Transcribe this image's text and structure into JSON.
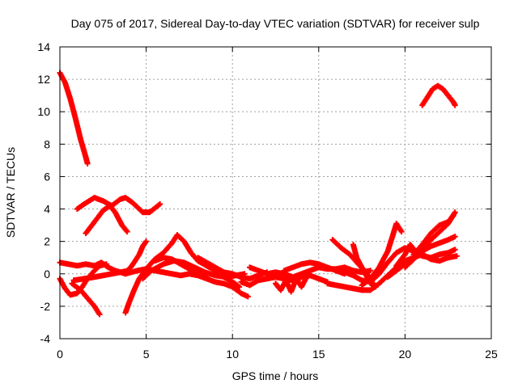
{
  "chart_data": {
    "type": "scatter",
    "title": "Day 075 of 2017, Sidereal Day-to-day VTEC variation (SDTVAR) for receiver sulp",
    "xlabel": "GPS time / hours",
    "ylabel": "SDTVAR / TECUs",
    "xlim": [
      0,
      25
    ],
    "ylim": [
      -4,
      14
    ],
    "xticks": [
      0,
      5,
      10,
      15,
      20,
      25
    ],
    "yticks": [
      -4,
      -2,
      0,
      2,
      4,
      6,
      8,
      10,
      12,
      14
    ],
    "grid": true,
    "marker": "+",
    "color": "#ff0000",
    "series": [
      {
        "name": "s1",
        "points": [
          [
            0.0,
            12.4
          ],
          [
            0.3,
            11.8
          ],
          [
            0.6,
            10.8
          ],
          [
            0.9,
            9.6
          ],
          [
            1.2,
            8.3
          ],
          [
            1.5,
            7.2
          ],
          [
            1.6,
            6.8
          ]
        ]
      },
      {
        "name": "s2",
        "points": [
          [
            1.0,
            4.0
          ],
          [
            1.4,
            4.3
          ],
          [
            2.0,
            4.7
          ],
          [
            2.5,
            4.5
          ],
          [
            3.0,
            4.2
          ],
          [
            3.5,
            4.6
          ],
          [
            3.8,
            4.7
          ],
          [
            4.2,
            4.4
          ],
          [
            4.8,
            3.8
          ],
          [
            5.2,
            3.8
          ],
          [
            5.8,
            4.3
          ]
        ]
      },
      {
        "name": "s3",
        "points": [
          [
            1.5,
            2.5
          ],
          [
            2.0,
            3.2
          ],
          [
            2.5,
            3.9
          ],
          [
            2.9,
            4.2
          ],
          [
            3.2,
            3.8
          ],
          [
            3.6,
            3.0
          ],
          [
            3.9,
            2.6
          ]
        ]
      },
      {
        "name": "s4",
        "points": [
          [
            0.0,
            0.7
          ],
          [
            0.5,
            0.6
          ],
          [
            1.0,
            0.5
          ],
          [
            1.5,
            0.6
          ],
          [
            2.0,
            0.5
          ],
          [
            2.4,
            0.7
          ],
          [
            2.8,
            0.4
          ],
          [
            3.2,
            0.2
          ],
          [
            3.8,
            0.0
          ],
          [
            4.5,
            0.2
          ],
          [
            5.0,
            0.3
          ],
          [
            5.5,
            0.2
          ],
          [
            6.0,
            0.1
          ],
          [
            6.5,
            0.0
          ],
          [
            7.0,
            -0.1
          ],
          [
            7.5,
            0.0
          ],
          [
            8.0,
            -0.1
          ],
          [
            8.5,
            -0.3
          ],
          [
            9.0,
            -0.5
          ],
          [
            9.5,
            -0.6
          ],
          [
            10.0,
            -0.8
          ],
          [
            10.5,
            -1.2
          ],
          [
            10.9,
            -1.4
          ]
        ]
      },
      {
        "name": "s5",
        "points": [
          [
            0.0,
            -0.3
          ],
          [
            0.3,
            -0.9
          ],
          [
            0.6,
            -1.3
          ],
          [
            1.0,
            -1.2
          ],
          [
            1.3,
            -0.8
          ],
          [
            1.6,
            -0.3
          ],
          [
            2.0,
            0.2
          ],
          [
            2.3,
            0.5
          ],
          [
            2.7,
            0.6
          ]
        ]
      },
      {
        "name": "s6",
        "points": [
          [
            0.7,
            -0.6
          ],
          [
            1.2,
            -1.0
          ],
          [
            1.6,
            -1.5
          ],
          [
            2.0,
            -2.0
          ],
          [
            2.3,
            -2.5
          ]
        ]
      },
      {
        "name": "s7",
        "points": [
          [
            0.8,
            -0.4
          ],
          [
            1.4,
            -0.3
          ],
          [
            2.0,
            -0.2
          ],
          [
            2.5,
            -0.1
          ],
          [
            3.0,
            0.0
          ],
          [
            3.5,
            0.1
          ],
          [
            4.0,
            0.2
          ]
        ]
      },
      {
        "name": "s8",
        "points": [
          [
            3.8,
            -2.4
          ],
          [
            4.0,
            -1.8
          ],
          [
            4.3,
            -1.0
          ],
          [
            4.6,
            -0.3
          ],
          [
            5.0,
            0.3
          ],
          [
            5.5,
            0.9
          ],
          [
            6.0,
            1.3
          ],
          [
            6.5,
            1.9
          ],
          [
            6.8,
            2.4
          ],
          [
            7.2,
            2.0
          ],
          [
            7.6,
            1.3
          ],
          [
            8.0,
            0.8
          ],
          [
            8.5,
            0.5
          ],
          [
            9.0,
            0.2
          ],
          [
            9.5,
            -0.2
          ],
          [
            10.0,
            -0.5
          ],
          [
            10.4,
            -0.8
          ]
        ]
      },
      {
        "name": "s9",
        "points": [
          [
            3.8,
            0.1
          ],
          [
            4.1,
            0.4
          ],
          [
            4.3,
            0.7
          ],
          [
            4.6,
            1.2
          ],
          [
            4.8,
            1.7
          ],
          [
            5.0,
            2.0
          ]
        ]
      },
      {
        "name": "s10",
        "points": [
          [
            4.8,
            -0.3
          ],
          [
            5.3,
            0.2
          ],
          [
            6.0,
            0.6
          ],
          [
            6.6,
            0.8
          ],
          [
            7.2,
            0.7
          ],
          [
            7.8,
            0.4
          ],
          [
            8.4,
            0.1
          ],
          [
            9.0,
            -0.1
          ],
          [
            9.6,
            -0.2
          ],
          [
            10.2,
            -0.1
          ],
          [
            10.7,
            0.0
          ]
        ]
      },
      {
        "name": "s11",
        "points": [
          [
            5.5,
            0.8
          ],
          [
            6.0,
            1.0
          ],
          [
            6.5,
            0.9
          ],
          [
            7.0,
            0.6
          ],
          [
            7.5,
            0.3
          ],
          [
            8.0,
            0.0
          ],
          [
            8.5,
            -0.2
          ]
        ]
      },
      {
        "name": "s12",
        "points": [
          [
            8.0,
            1.0
          ],
          [
            8.5,
            0.7
          ],
          [
            9.0,
            0.4
          ],
          [
            9.5,
            0.1
          ],
          [
            10.0,
            0.0
          ],
          [
            10.5,
            -0.2
          ],
          [
            11.0,
            -0.3
          ],
          [
            11.5,
            -0.1
          ],
          [
            12.0,
            0.1
          ]
        ]
      },
      {
        "name": "s13",
        "points": [
          [
            10.5,
            -0.5
          ],
          [
            11.0,
            -0.7
          ],
          [
            11.5,
            -0.4
          ],
          [
            12.0,
            -0.3
          ],
          [
            12.5,
            -0.2
          ],
          [
            13.0,
            -0.3
          ],
          [
            13.5,
            -0.4
          ],
          [
            14.0,
            -0.2
          ],
          [
            14.5,
            -0.1
          ],
          [
            15.0,
            -0.3
          ],
          [
            15.5,
            -0.5
          ]
        ]
      },
      {
        "name": "s14",
        "points": [
          [
            11.0,
            0.4
          ],
          [
            11.5,
            0.2
          ],
          [
            12.0,
            0.0
          ],
          [
            12.5,
            0.1
          ],
          [
            13.0,
            0.0
          ],
          [
            13.5,
            -0.2
          ],
          [
            14.0,
            0.0
          ],
          [
            14.5,
            0.2
          ],
          [
            15.0,
            0.4
          ],
          [
            15.5,
            0.3
          ],
          [
            16.0,
            0.3
          ],
          [
            16.5,
            0.4
          ],
          [
            17.0,
            0.2
          ],
          [
            17.5,
            0.1
          ],
          [
            18.0,
            0.2
          ]
        ]
      },
      {
        "name": "s15",
        "points": [
          [
            12.5,
            -0.6
          ],
          [
            12.8,
            -1.0
          ],
          [
            13.1,
            -0.4
          ],
          [
            13.4,
            -1.1
          ],
          [
            13.7,
            -0.3
          ],
          [
            14.0,
            -0.8
          ],
          [
            14.3,
            -0.2
          ]
        ]
      },
      {
        "name": "s16",
        "points": [
          [
            13.0,
            0.2
          ],
          [
            13.5,
            0.4
          ],
          [
            14.0,
            0.6
          ],
          [
            14.5,
            0.7
          ],
          [
            15.0,
            0.6
          ],
          [
            15.5,
            0.4
          ],
          [
            16.0,
            0.2
          ],
          [
            16.5,
            0.0
          ]
        ]
      },
      {
        "name": "s17",
        "points": [
          [
            15.5,
            -0.6
          ],
          [
            16.0,
            -0.7
          ],
          [
            16.5,
            -0.8
          ],
          [
            17.0,
            -0.9
          ],
          [
            17.5,
            -1.0
          ],
          [
            18.0,
            -1.0
          ],
          [
            18.5,
            -0.6
          ],
          [
            19.0,
            -0.1
          ],
          [
            19.5,
            0.4
          ],
          [
            20.0,
            0.8
          ],
          [
            20.5,
            1.0
          ],
          [
            21.0,
            1.2
          ]
        ]
      },
      {
        "name": "s18",
        "points": [
          [
            15.8,
            2.1
          ],
          [
            16.3,
            1.6
          ],
          [
            16.8,
            1.2
          ],
          [
            17.3,
            0.6
          ],
          [
            17.8,
            0.0
          ],
          [
            18.0,
            -0.4
          ],
          [
            18.3,
            -0.8
          ]
        ]
      },
      {
        "name": "s19",
        "points": [
          [
            17.0,
            1.8
          ],
          [
            17.2,
            1.0
          ],
          [
            17.5,
            0.4
          ],
          [
            17.8,
            -0.2
          ],
          [
            18.1,
            -0.7
          ]
        ]
      },
      {
        "name": "s20",
        "points": [
          [
            16.0,
            0.2
          ],
          [
            16.5,
            0.1
          ],
          [
            17.0,
            -0.1
          ],
          [
            17.5,
            -0.4
          ],
          [
            18.0,
            -0.5
          ],
          [
            18.5,
            0.0
          ],
          [
            19.0,
            0.7
          ],
          [
            19.5,
            1.3
          ],
          [
            20.0,
            1.6
          ],
          [
            20.5,
            1.4
          ],
          [
            21.0,
            1.1
          ],
          [
            21.5,
            1.0
          ],
          [
            22.0,
            1.2
          ],
          [
            22.5,
            1.3
          ],
          [
            22.9,
            1.5
          ]
        ]
      },
      {
        "name": "s21",
        "points": [
          [
            17.5,
            -0.7
          ],
          [
            18.0,
            -0.3
          ],
          [
            18.5,
            0.4
          ],
          [
            19.0,
            1.4
          ],
          [
            19.3,
            2.4
          ],
          [
            19.5,
            3.1
          ],
          [
            19.8,
            2.6
          ]
        ]
      },
      {
        "name": "s22",
        "points": [
          [
            19.0,
            -0.2
          ],
          [
            19.5,
            0.2
          ],
          [
            20.0,
            0.6
          ],
          [
            20.5,
            1.0
          ],
          [
            21.0,
            1.4
          ],
          [
            21.5,
            1.7
          ],
          [
            22.0,
            1.9
          ],
          [
            22.5,
            2.1
          ],
          [
            22.9,
            2.3
          ]
        ]
      },
      {
        "name": "s23",
        "points": [
          [
            19.5,
            0.5
          ],
          [
            20.0,
            1.2
          ],
          [
            20.3,
            1.8
          ],
          [
            20.6,
            1.4
          ],
          [
            21.0,
            1.2
          ],
          [
            21.5,
            0.9
          ],
          [
            22.0,
            0.8
          ],
          [
            22.5,
            1.0
          ],
          [
            23.0,
            1.1
          ]
        ]
      },
      {
        "name": "s24",
        "points": [
          [
            20.0,
            0.4
          ],
          [
            20.5,
            0.9
          ],
          [
            21.0,
            1.5
          ],
          [
            21.5,
            2.1
          ],
          [
            22.0,
            2.6
          ],
          [
            22.5,
            3.1
          ],
          [
            22.9,
            3.8
          ]
        ]
      },
      {
        "name": "s25",
        "points": [
          [
            20.5,
            1.2
          ],
          [
            21.0,
            1.8
          ],
          [
            21.5,
            2.5
          ],
          [
            22.0,
            3.0
          ],
          [
            22.5,
            3.2
          ],
          [
            22.8,
            3.6
          ]
        ]
      },
      {
        "name": "s26",
        "points": [
          [
            21.0,
            10.4
          ],
          [
            21.3,
            10.9
          ],
          [
            21.6,
            11.4
          ],
          [
            21.9,
            11.6
          ],
          [
            22.2,
            11.4
          ],
          [
            22.5,
            11.0
          ],
          [
            22.8,
            10.6
          ],
          [
            22.9,
            10.4
          ]
        ]
      }
    ]
  }
}
